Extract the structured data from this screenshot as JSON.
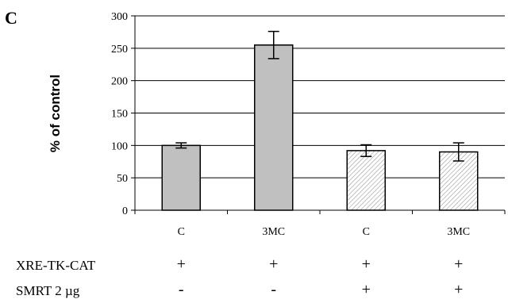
{
  "panel_label": "C",
  "chart_data": {
    "type": "bar",
    "ylabel": "% of control",
    "xlabel": "",
    "ylim": [
      0,
      300
    ],
    "yticks": [
      0,
      50,
      100,
      150,
      200,
      250,
      300
    ],
    "grid": true,
    "categories": [
      "C",
      "3MC",
      "C",
      "3MC"
    ],
    "values": [
      100,
      255,
      92,
      90
    ],
    "errors": [
      4,
      21,
      9,
      14
    ],
    "fills": [
      "solid",
      "solid",
      "hatched",
      "hatched"
    ],
    "colors": {
      "solid": "#c0c0c0",
      "hatch": "#999999",
      "edge": "#000000",
      "grid": "#000000"
    }
  },
  "conditions": {
    "rows": [
      {
        "label": "XRE-TK-CAT",
        "values": [
          "+",
          "+",
          "+",
          "+"
        ]
      },
      {
        "label": "SMRT 2 µg",
        "values": [
          "-",
          "-",
          "+",
          "+"
        ]
      }
    ]
  }
}
